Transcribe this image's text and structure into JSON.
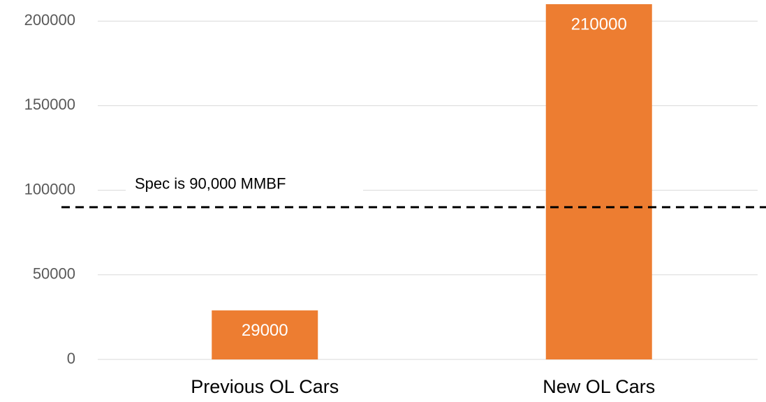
{
  "chart_data": {
    "type": "bar",
    "categories": [
      "Previous OL Cars",
      "New OL Cars"
    ],
    "values": [
      29000,
      210000
    ],
    "color": "#ed7d31",
    "ylim": [
      0,
      210000
    ],
    "yticks": [
      0,
      50000,
      100000,
      150000,
      200000
    ],
    "grid": true,
    "reference_line": {
      "value": 90000,
      "label": "Spec is 90,000 MMBF"
    }
  }
}
